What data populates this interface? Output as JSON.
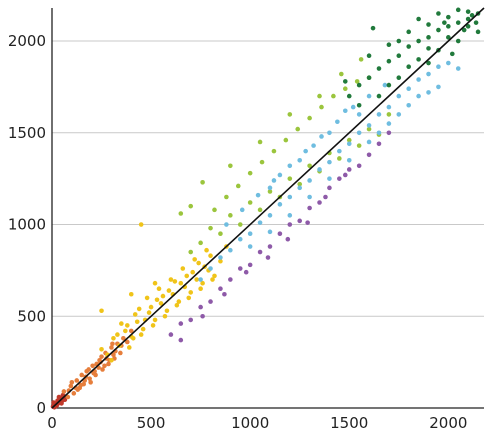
{
  "chart_data": {
    "type": "scatter",
    "title": "",
    "xlabel": "",
    "ylabel": "",
    "xlim": [
      0,
      2180
    ],
    "ylim": [
      0,
      2180
    ],
    "x_ticks": [
      {
        "value": 0,
        "label": "0"
      },
      {
        "value": 500,
        "label": "500"
      },
      {
        "value": 1000,
        "label": "1000"
      },
      {
        "value": 1500,
        "label": "1500"
      },
      {
        "value": 2000,
        "label": "2000"
      }
    ],
    "y_ticks": [
      {
        "value": 0,
        "label": "0"
      },
      {
        "value": 500,
        "label": "500"
      },
      {
        "value": 1000,
        "label": "1000"
      },
      {
        "value": 1500,
        "label": "1500"
      },
      {
        "value": 2000,
        "label": "2000"
      }
    ],
    "grid": "horizontal",
    "legend": "none",
    "reference_line": {
      "from": [
        0,
        0
      ],
      "to": [
        2180,
        2180
      ],
      "color": "#111111"
    },
    "series": [
      {
        "color": "#c0392b",
        "points": [
          [
            5,
            8
          ],
          [
            12,
            4
          ],
          [
            18,
            22
          ],
          [
            25,
            15
          ],
          [
            30,
            35
          ],
          [
            38,
            28
          ],
          [
            45,
            50
          ],
          [
            52,
            40
          ],
          [
            60,
            58
          ],
          [
            8,
            30
          ],
          [
            20,
            10
          ],
          [
            35,
            60
          ],
          [
            48,
            25
          ],
          [
            55,
            70
          ],
          [
            65,
            45
          ],
          [
            15,
            18
          ],
          [
            28,
            40
          ],
          [
            42,
            38
          ],
          [
            58,
            52
          ],
          [
            70,
            62
          ]
        ]
      },
      {
        "color": "#e67e3c",
        "points": [
          [
            60,
            90
          ],
          [
            80,
            60
          ],
          [
            95,
            120
          ],
          [
            110,
            80
          ],
          [
            125,
            150
          ],
          [
            140,
            110
          ],
          [
            160,
            130
          ],
          [
            175,
            200
          ],
          [
            190,
            160
          ],
          [
            205,
            230
          ],
          [
            220,
            180
          ],
          [
            240,
            260
          ],
          [
            255,
            210
          ],
          [
            270,
            300
          ],
          [
            285,
            240
          ],
          [
            300,
            330
          ],
          [
            315,
            270
          ],
          [
            330,
            350
          ],
          [
            345,
            300
          ],
          [
            360,
            380
          ],
          [
            100,
            140
          ],
          [
            130,
            100
          ],
          [
            170,
            170
          ],
          [
            210,
            190
          ],
          [
            250,
            280
          ],
          [
            290,
            260
          ],
          [
            320,
            310
          ],
          [
            350,
            340
          ],
          [
            380,
            360
          ],
          [
            400,
            420
          ],
          [
            150,
            180
          ],
          [
            195,
            140
          ],
          [
            235,
            220
          ],
          [
            275,
            270
          ],
          [
            310,
            290
          ],
          [
            120,
            110
          ],
          [
            165,
            150
          ],
          [
            225,
            240
          ],
          [
            265,
            230
          ],
          [
            305,
            350
          ],
          [
            85,
            95
          ],
          [
            145,
            125
          ],
          [
            185,
            210
          ],
          [
            215,
            200
          ],
          [
            245,
            250
          ]
        ]
      },
      {
        "color": "#f0c419",
        "points": [
          [
            250,
            320
          ],
          [
            280,
            290
          ],
          [
            310,
            380
          ],
          [
            340,
            340
          ],
          [
            370,
            420
          ],
          [
            400,
            390
          ],
          [
            430,
            470
          ],
          [
            460,
            430
          ],
          [
            490,
            520
          ],
          [
            520,
            480
          ],
          [
            550,
            570
          ],
          [
            580,
            530
          ],
          [
            610,
            620
          ],
          [
            640,
            580
          ],
          [
            670,
            660
          ],
          [
            700,
            630
          ],
          [
            730,
            700
          ],
          [
            760,
            680
          ],
          [
            790,
            750
          ],
          [
            820,
            720
          ],
          [
            350,
            460
          ],
          [
            420,
            510
          ],
          [
            480,
            600
          ],
          [
            540,
            650
          ],
          [
            600,
            700
          ],
          [
            660,
            760
          ],
          [
            720,
            810
          ],
          [
            780,
            860
          ],
          [
            300,
            260
          ],
          [
            390,
            330
          ],
          [
            450,
            400
          ],
          [
            510,
            450
          ],
          [
            570,
            500
          ],
          [
            630,
            560
          ],
          [
            690,
            600
          ],
          [
            750,
            650
          ],
          [
            810,
            700
          ],
          [
            380,
            450
          ],
          [
            440,
            540
          ],
          [
            500,
            550
          ],
          [
            560,
            610
          ],
          [
            620,
            690
          ],
          [
            680,
            720
          ],
          [
            740,
            790
          ],
          [
            800,
            830
          ],
          [
            330,
            400
          ],
          [
            470,
            480
          ],
          [
            590,
            640
          ],
          [
            710,
            740
          ],
          [
            770,
            770
          ],
          [
            410,
            380
          ],
          [
            530,
            590
          ],
          [
            650,
            680
          ],
          [
            850,
            800
          ],
          [
            880,
            880
          ],
          [
            450,
            1000
          ],
          [
            250,
            530
          ],
          [
            400,
            620
          ],
          [
            520,
            680
          ]
        ]
      },
      {
        "color": "#9bc53d",
        "points": [
          [
            700,
            850
          ],
          [
            750,
            900
          ],
          [
            800,
            980
          ],
          [
            850,
            950
          ],
          [
            900,
            1050
          ],
          [
            950,
            1000
          ],
          [
            1000,
            1120
          ],
          [
            1050,
            1080
          ],
          [
            1100,
            1180
          ],
          [
            1150,
            1150
          ],
          [
            1200,
            1250
          ],
          [
            1250,
            1220
          ],
          [
            1300,
            1320
          ],
          [
            1350,
            1290
          ],
          [
            1400,
            1390
          ],
          [
            1450,
            1360
          ],
          [
            1500,
            1460
          ],
          [
            1550,
            1430
          ],
          [
            1600,
            1520
          ],
          [
            1650,
            1490
          ],
          [
            820,
            1080
          ],
          [
            880,
            1150
          ],
          [
            940,
            1210
          ],
          [
            1000,
            1280
          ],
          [
            1060,
            1340
          ],
          [
            1120,
            1400
          ],
          [
            1180,
            1460
          ],
          [
            1240,
            1520
          ],
          [
            1300,
            1580
          ],
          [
            1360,
            1640
          ],
          [
            1420,
            1700
          ],
          [
            1480,
            1740
          ],
          [
            1540,
            1780
          ],
          [
            1600,
            1800
          ],
          [
            650,
            1060
          ],
          [
            700,
            1100
          ],
          [
            760,
            1230
          ],
          [
            900,
            1320
          ],
          [
            1050,
            1450
          ],
          [
            1200,
            1600
          ],
          [
            1350,
            1700
          ],
          [
            1460,
            1820
          ],
          [
            1560,
            1900
          ],
          [
            1700,
            1600
          ]
        ]
      },
      {
        "color": "#6fbde0",
        "points": [
          [
            750,
            700
          ],
          [
            800,
            760
          ],
          [
            850,
            820
          ],
          [
            900,
            860
          ],
          [
            950,
            920
          ],
          [
            1000,
            950
          ],
          [
            1050,
            1010
          ],
          [
            1100,
            1050
          ],
          [
            1150,
            1110
          ],
          [
            1200,
            1150
          ],
          [
            1250,
            1200
          ],
          [
            1300,
            1240
          ],
          [
            1350,
            1300
          ],
          [
            1400,
            1340
          ],
          [
            1450,
            1400
          ],
          [
            1500,
            1440
          ],
          [
            1550,
            1500
          ],
          [
            1600,
            1540
          ],
          [
            1650,
            1600
          ],
          [
            1700,
            1640
          ],
          [
            1750,
            1700
          ],
          [
            1800,
            1740
          ],
          [
            1850,
            1790
          ],
          [
            1900,
            1820
          ],
          [
            1950,
            1860
          ],
          [
            2000,
            1880
          ],
          [
            880,
            1000
          ],
          [
            960,
            1080
          ],
          [
            1040,
            1160
          ],
          [
            1120,
            1240
          ],
          [
            1200,
            1320
          ],
          [
            1280,
            1400
          ],
          [
            1360,
            1480
          ],
          [
            1440,
            1560
          ],
          [
            1520,
            1640
          ],
          [
            1600,
            1700
          ],
          [
            1680,
            1760
          ],
          [
            1000,
            880
          ],
          [
            1100,
            960
          ],
          [
            1200,
            1050
          ],
          [
            1300,
            1150
          ],
          [
            1400,
            1250
          ],
          [
            1500,
            1350
          ],
          [
            1600,
            1450
          ],
          [
            1700,
            1550
          ],
          [
            1800,
            1650
          ],
          [
            1900,
            1720
          ],
          [
            1100,
            1200
          ],
          [
            1250,
            1350
          ],
          [
            1400,
            1500
          ],
          [
            1550,
            1600
          ],
          [
            1650,
            1500
          ],
          [
            1750,
            1600
          ],
          [
            1850,
            1700
          ],
          [
            1950,
            1750
          ],
          [
            2050,
            1850
          ],
          [
            1150,
            1270
          ],
          [
            1320,
            1430
          ],
          [
            1480,
            1620
          ]
        ]
      },
      {
        "color": "#8e5aa8",
        "points": [
          [
            600,
            400
          ],
          [
            650,
            460
          ],
          [
            700,
            480
          ],
          [
            750,
            550
          ],
          [
            800,
            580
          ],
          [
            850,
            650
          ],
          [
            900,
            700
          ],
          [
            950,
            760
          ],
          [
            1000,
            780
          ],
          [
            1050,
            850
          ],
          [
            1100,
            880
          ],
          [
            1150,
            950
          ],
          [
            1200,
            1000
          ],
          [
            1250,
            1020
          ],
          [
            1300,
            1090
          ],
          [
            1350,
            1120
          ],
          [
            1400,
            1200
          ],
          [
            1450,
            1250
          ],
          [
            1500,
            1300
          ],
          [
            1550,
            1320
          ],
          [
            1600,
            1380
          ],
          [
            1650,
            1440
          ],
          [
            1700,
            1500
          ],
          [
            650,
            370
          ],
          [
            760,
            500
          ],
          [
            870,
            620
          ],
          [
            980,
            740
          ],
          [
            1090,
            820
          ],
          [
            1190,
            920
          ],
          [
            1290,
            1010
          ],
          [
            1380,
            1150
          ],
          [
            1480,
            1270
          ]
        ]
      },
      {
        "color": "#217a3c",
        "points": [
          [
            1500,
            1700
          ],
          [
            1550,
            1760
          ],
          [
            1600,
            1800
          ],
          [
            1650,
            1850
          ],
          [
            1700,
            1890
          ],
          [
            1750,
            1920
          ],
          [
            1800,
            1970
          ],
          [
            1850,
            2000
          ],
          [
            1900,
            2020
          ],
          [
            1950,
            2060
          ],
          [
            2000,
            2080
          ],
          [
            2050,
            2100
          ],
          [
            2100,
            2120
          ],
          [
            2150,
            2150
          ],
          [
            1600,
            1920
          ],
          [
            1700,
            1980
          ],
          [
            1800,
            2050
          ],
          [
            1900,
            2090
          ],
          [
            2000,
            2130
          ],
          [
            2100,
            2160
          ],
          [
            1650,
            1700
          ],
          [
            1750,
            1800
          ],
          [
            1850,
            1900
          ],
          [
            1950,
            1950
          ],
          [
            2050,
            2000
          ],
          [
            2150,
            2050
          ],
          [
            1700,
            1760
          ],
          [
            1800,
            1860
          ],
          [
            1900,
            1960
          ],
          [
            2000,
            2020
          ],
          [
            2100,
            2080
          ],
          [
            1750,
            2000
          ],
          [
            1850,
            2120
          ],
          [
            1950,
            2150
          ],
          [
            2050,
            2170
          ],
          [
            2120,
            2140
          ],
          [
            1550,
            1650
          ],
          [
            1480,
            1780
          ],
          [
            1620,
            2070
          ],
          [
            1900,
            1880
          ],
          [
            2020,
            1930
          ],
          [
            2080,
            2060
          ],
          [
            1980,
            2100
          ],
          [
            2140,
            2100
          ]
        ]
      }
    ]
  }
}
